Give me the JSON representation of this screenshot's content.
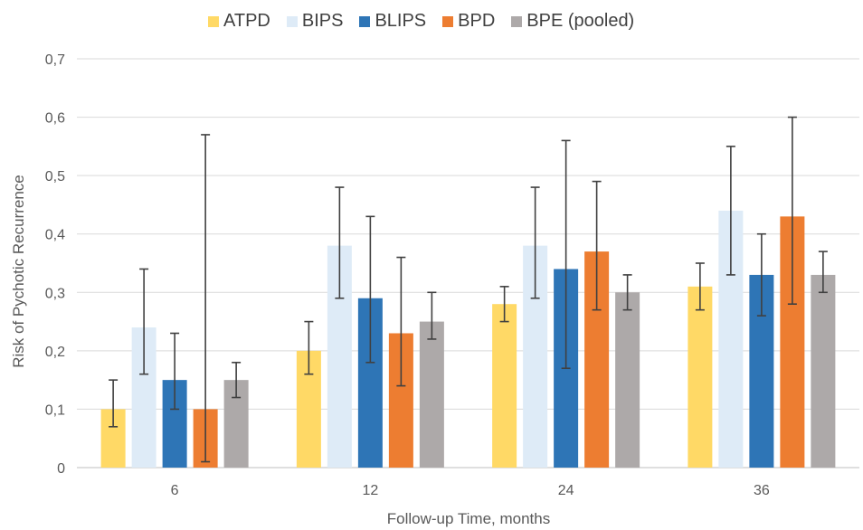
{
  "chart_data": {
    "type": "bar",
    "categories": [
      "6",
      "12",
      "24",
      "36"
    ],
    "series": [
      {
        "name": "ATPD",
        "color": "#FFD966",
        "values": [
          0.1,
          0.2,
          0.28,
          0.31
        ],
        "err_low": [
          0.07,
          0.16,
          0.25,
          0.27
        ],
        "err_high": [
          0.15,
          0.25,
          0.31,
          0.35
        ]
      },
      {
        "name": "BIPS",
        "color": "#DEEBF7",
        "values": [
          0.24,
          0.38,
          0.38,
          0.44
        ],
        "err_low": [
          0.16,
          0.29,
          0.29,
          0.33
        ],
        "err_high": [
          0.34,
          0.48,
          0.48,
          0.55
        ]
      },
      {
        "name": "BLIPS",
        "color": "#2E75B6",
        "values": [
          0.15,
          0.29,
          0.34,
          0.33
        ],
        "err_low": [
          0.1,
          0.18,
          0.17,
          0.26
        ],
        "err_high": [
          0.23,
          0.43,
          0.56,
          0.4
        ]
      },
      {
        "name": "BPD",
        "color": "#ED7D31",
        "values": [
          0.1,
          0.23,
          0.37,
          0.43
        ],
        "err_low": [
          0.01,
          0.14,
          0.27,
          0.28
        ],
        "err_high": [
          0.57,
          0.36,
          0.49,
          0.6
        ]
      },
      {
        "name": "BPE (pooled)",
        "color": "#ADA9A9",
        "values": [
          0.15,
          0.25,
          0.3,
          0.33
        ],
        "err_low": [
          0.12,
          0.22,
          0.27,
          0.3
        ],
        "err_high": [
          0.18,
          0.3,
          0.33,
          0.37
        ]
      }
    ],
    "xlabel": "Follow-up Time, months",
    "ylabel": "Risk of Pychotic Recurrence",
    "ylim": [
      0,
      0.7
    ],
    "yticks": [
      "0",
      "0,1",
      "0,2",
      "0,3",
      "0,4",
      "0,5",
      "0,6",
      "0,7"
    ],
    "grid": true,
    "legend_position": "top"
  }
}
